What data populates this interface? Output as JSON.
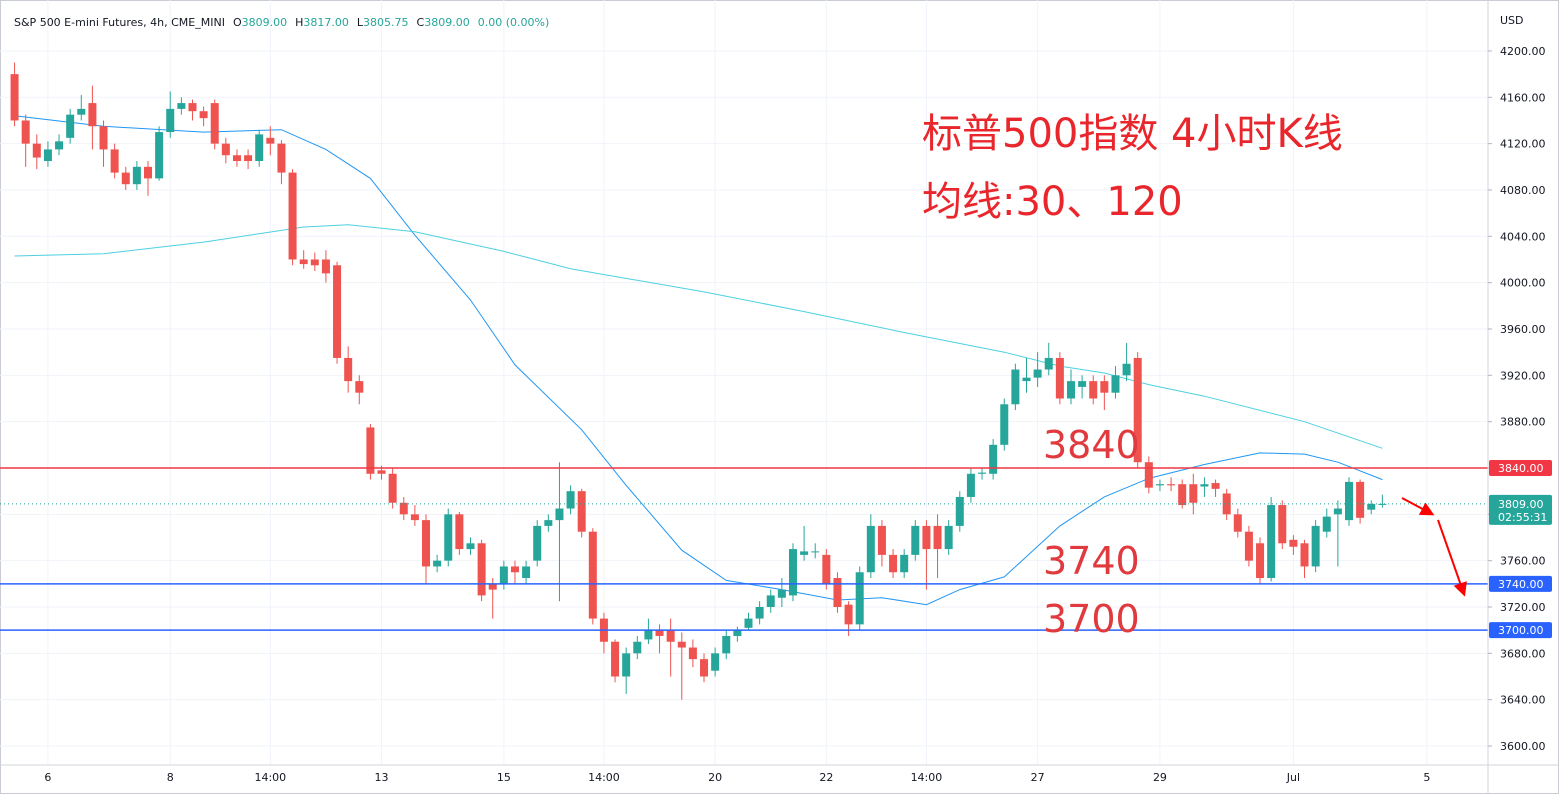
{
  "header": {
    "symbol": "S&P 500 E-mini Futures, 4h, CME_MINI",
    "ohlc": [
      {
        "key": "O",
        "value": "3809.00"
      },
      {
        "key": "H",
        "value": "3817.00"
      },
      {
        "key": "L",
        "value": "3805.75"
      },
      {
        "key": "C",
        "value": "3809.00"
      }
    ],
    "change": "0.00 (0.00%)"
  },
  "chart_data": {
    "type": "candlestick",
    "currency": "USD",
    "title_lines": [
      "标普500指数 4小时K线",
      "均线:30、120"
    ],
    "up_color": "#26a69a",
    "down_color": "#ef5350",
    "ylim": [
      3583.6,
      4244
    ],
    "yticks": [
      {
        "value": 3600,
        "label": "3600.00"
      },
      {
        "value": 3640,
        "label": "3640.00"
      },
      {
        "value": 3680,
        "label": "3680.00"
      },
      {
        "value": 3720,
        "label": "3720.00"
      },
      {
        "value": 3760,
        "label": "3760.00"
      },
      {
        "value": 3800,
        "label": "3800.00"
      },
      {
        "value": 3840,
        "label": "3840.00"
      },
      {
        "value": 3880,
        "label": "3880.00"
      },
      {
        "value": 3920,
        "label": "3920.00"
      },
      {
        "value": 3960,
        "label": "3960.00"
      },
      {
        "value": 4000,
        "label": "4000.00"
      },
      {
        "value": 4040,
        "label": "4040.00"
      },
      {
        "value": 4080,
        "label": "4080.00"
      },
      {
        "value": 4120,
        "label": "4120.00"
      },
      {
        "value": 4160,
        "label": "4160.00"
      },
      {
        "value": 4200,
        "label": "4200.00"
      }
    ],
    "grid": true,
    "categories": [
      null,
      null,
      null,
      "6",
      null,
      null,
      null,
      null,
      null,
      null,
      null,
      null,
      null,
      null,
      "8",
      null,
      null,
      null,
      null,
      null,
      null,
      null,
      null,
      "14:00",
      null,
      null,
      null,
      null,
      null,
      null,
      null,
      null,
      null,
      "13",
      null,
      null,
      null,
      null,
      null,
      null,
      null,
      null,
      null,
      null,
      "15",
      null,
      null,
      null,
      null,
      null,
      null,
      null,
      null,
      "14:00",
      null,
      null,
      null,
      null,
      null,
      null,
      null,
      null,
      null,
      "20",
      null,
      null,
      null,
      null,
      null,
      null,
      null,
      null,
      null,
      "22",
      null,
      null,
      null,
      null,
      null,
      null,
      null,
      null,
      "14:00",
      null,
      null,
      null,
      null,
      null,
      null,
      null,
      null,
      null,
      "27",
      null,
      null,
      null,
      null,
      null,
      null,
      null,
      null,
      null,
      null,
      "29",
      null,
      null,
      null,
      null,
      null,
      null,
      null,
      null,
      null,
      null,
      null,
      "Jul",
      null,
      null,
      null,
      null,
      null,
      null,
      null,
      null,
      null,
      null,
      null,
      "5",
      null,
      null,
      null,
      null,
      null
    ],
    "open": [
      4180,
      4140,
      4120,
      4105,
      4115,
      4125,
      4145,
      4155,
      4135,
      4115,
      4095,
      4085,
      4100,
      4090,
      4130,
      4150,
      4155,
      4148,
      4155,
      4120,
      4110,
      4110,
      4105,
      4125,
      4120,
      4095,
      4020,
      4020,
      4020,
      4015,
      3935,
      3915,
      3875,
      3838,
      3835,
      3810,
      3800,
      3795,
      3755,
      3760,
      3800,
      3770,
      3775,
      3740,
      3740,
      3755,
      3745,
      3760,
      3790,
      3795,
      3805,
      3820,
      3785,
      3710,
      3690,
      3660,
      3680,
      3692,
      3700,
      3700,
      3690,
      3685,
      3675,
      3665,
      3680,
      3695,
      3702,
      3710,
      3720,
      3728,
      3730,
      3765,
      3768,
      3765,
      3745,
      3722,
      3705,
      3750,
      3790,
      3765,
      3750,
      3765,
      3790,
      3790,
      3770,
      3790,
      3815,
      3835,
      3835,
      3860,
      3895,
      3915,
      3918,
      3925,
      3935,
      3900,
      3910,
      3915,
      3915,
      3905,
      3920,
      3935,
      3845,
      3825,
      3826,
      3826,
      3826,
      3824,
      3827,
      3818,
      3800,
      3785,
      3775,
      3745,
      3808,
      3778,
      3775,
      3755,
      3785,
      3800,
      3795,
      3828,
      3804,
      3809,
      null,
      null,
      null,
      null,
      null,
      null,
      null,
      null,
      null
    ],
    "high": [
      4190,
      4145,
      4128,
      4122,
      4128,
      4150,
      4162,
      4170,
      4140,
      4120,
      4100,
      4105,
      4105,
      4135,
      4165,
      4160,
      4158,
      4152,
      4158,
      4125,
      4115,
      4115,
      4132,
      4135,
      4123,
      4098,
      4028,
      4026,
      4028,
      4018,
      3945,
      3920,
      3878,
      3842,
      3840,
      3815,
      3808,
      3800,
      3765,
      3805,
      3802,
      3780,
      3778,
      3745,
      3760,
      3760,
      3760,
      3795,
      3800,
      3845,
      3825,
      3822,
      3788,
      3715,
      3692,
      3685,
      3695,
      3710,
      3705,
      3710,
      3698,
      3692,
      3680,
      3685,
      3700,
      3703,
      3715,
      3725,
      3735,
      3745,
      3775,
      3790,
      3775,
      3770,
      3750,
      3725,
      3755,
      3800,
      3795,
      3770,
      3770,
      3795,
      3795,
      3800,
      3795,
      3820,
      3840,
      3840,
      3865,
      3900,
      3930,
      3935,
      3940,
      3948,
      3940,
      3925,
      3920,
      3920,
      3920,
      3928,
      3948,
      3940,
      3850,
      3830,
      3832,
      3830,
      3835,
      3832,
      3830,
      3822,
      3805,
      3790,
      3780,
      3815,
      3812,
      3782,
      3778,
      3795,
      3805,
      3812,
      3832,
      3830,
      3812,
      3817,
      null,
      null,
      null,
      null,
      null,
      null,
      null,
      null,
      null
    ],
    "low": [
      4135,
      4100,
      4098,
      4100,
      4110,
      4120,
      4140,
      4115,
      4100,
      4090,
      4080,
      4080,
      4075,
      4088,
      4125,
      4145,
      4140,
      4135,
      4115,
      4103,
      4100,
      4098,
      4100,
      4110,
      4085,
      4015,
      4012,
      4010,
      4000,
      3930,
      3905,
      3895,
      3830,
      3830,
      3805,
      3795,
      3790,
      3740,
      3750,
      3755,
      3765,
      3765,
      3725,
      3710,
      3735,
      3740,
      3740,
      3755,
      3785,
      3725,
      3800,
      3780,
      3705,
      3680,
      3655,
      3645,
      3675,
      3688,
      3680,
      3660,
      3640,
      3668,
      3655,
      3660,
      3675,
      3690,
      3700,
      3705,
      3715,
      3720,
      3725,
      3760,
      3762,
      3735,
      3715,
      3695,
      3700,
      3745,
      3755,
      3745,
      3745,
      3760,
      3735,
      3745,
      3765,
      3785,
      3810,
      3830,
      3830,
      3855,
      3890,
      3905,
      3910,
      3920,
      3895,
      3895,
      3900,
      3895,
      3890,
      3900,
      3915,
      3840,
      3818,
      3820,
      3820,
      3805,
      3800,
      3815,
      3815,
      3795,
      3780,
      3755,
      3740,
      3742,
      3770,
      3765,
      3745,
      3750,
      3780,
      3755,
      3790,
      3792,
      3800,
      3805.75,
      null,
      null,
      null,
      null,
      null,
      null,
      null,
      null,
      null
    ],
    "close": [
      4140,
      4120,
      4108,
      4115,
      4122,
      4145,
      4150,
      4135,
      4115,
      4095,
      4085,
      4100,
      4090,
      4130,
      4150,
      4155,
      4148,
      4142,
      4120,
      4110,
      4105,
      4105,
      4128,
      4120,
      4095,
      4020,
      4016,
      4015,
      4008,
      3935,
      3915,
      3905,
      3835,
      3835,
      3810,
      3800,
      3795,
      3755,
      3760,
      3800,
      3770,
      3775,
      3730,
      3735,
      3755,
      3750,
      3755,
      3790,
      3795,
      3805,
      3820,
      3785,
      3710,
      3690,
      3660,
      3680,
      3690,
      3700,
      3695,
      3690,
      3685,
      3675,
      3660,
      3680,
      3695,
      3700,
      3710,
      3720,
      3730,
      3735,
      3770,
      3768,
      3768,
      3740,
      3720,
      3705,
      3750,
      3790,
      3765,
      3750,
      3765,
      3790,
      3770,
      3770,
      3790,
      3815,
      3835,
      3836,
      3860,
      3895,
      3925,
      3918,
      3925,
      3935,
      3900,
      3915,
      3915,
      3900,
      3905,
      3920,
      3930,
      3845,
      3823,
      3826,
      3825,
      3808,
      3810,
      3826,
      3822,
      3800,
      3785,
      3760,
      3745,
      3808,
      3775,
      3772,
      3755,
      3790,
      3798,
      3805,
      3828,
      3797,
      3809,
      3809,
      null,
      null,
      null,
      null,
      null,
      null,
      null,
      null,
      null
    ],
    "moving_averages": [
      {
        "color": "#2196f3",
        "x": [
          0,
          8,
          17,
          24,
          28,
          32,
          36,
          41,
          45,
          51,
          55,
          60,
          64,
          69,
          74,
          78,
          82,
          85,
          89,
          94,
          98,
          102,
          107,
          112,
          116,
          119,
          123
        ],
        "values": [
          4144,
          4135,
          4130,
          4132,
          4115,
          4090,
          4041,
          3985,
          3929,
          3873,
          3825,
          3769,
          3743,
          3735,
          3726,
          3728,
          3722,
          3735,
          3746,
          3790,
          3815,
          3831,
          3843,
          3853,
          3852,
          3845,
          3830
        ]
      },
      {
        "color": "#4dd0e1",
        "x": [
          0,
          8,
          17,
          26,
          30,
          36,
          44,
          50,
          62,
          71,
          80,
          89,
          94,
          98,
          102,
          107,
          116,
          123
        ],
        "values": [
          4023,
          4025,
          4035,
          4048,
          4050,
          4044,
          4027,
          4012,
          3992,
          3975,
          3957,
          3940,
          3928,
          3922,
          3912,
          3902,
          3880,
          3857
        ]
      }
    ],
    "hlines": [
      {
        "value": 3840,
        "label": "3840.00",
        "note": "3840",
        "color": "#f23645"
      },
      {
        "value": 3740,
        "label": "3740.00",
        "note": "3740",
        "color": "#2962ff"
      },
      {
        "value": 3700,
        "label": "3700.00",
        "note": "3700",
        "color": "#2962ff"
      }
    ],
    "last": {
      "value": 3809,
      "label": "3809.00",
      "countdown": "02:55:31",
      "color": "#26a69a"
    }
  }
}
